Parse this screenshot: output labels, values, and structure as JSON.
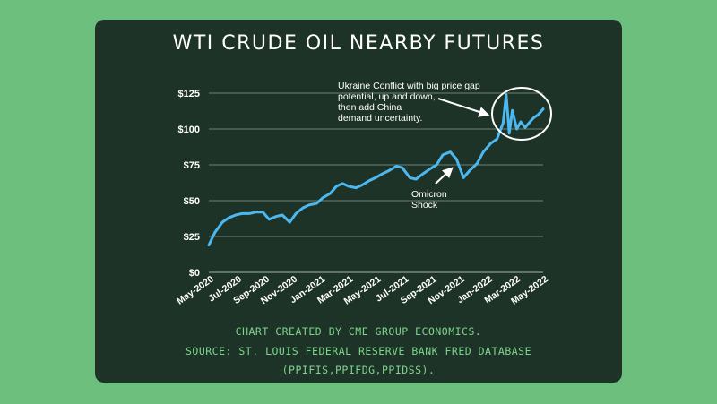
{
  "chart_data": {
    "type": "line",
    "title": "WTI CRUDE OIL NEARBY FUTURES",
    "yticks": [
      "$0",
      "$25",
      "$50",
      "$75",
      "$100",
      "$125"
    ],
    "ylim": [
      0,
      125
    ],
    "xticks": [
      "May-2020",
      "Jul-2020",
      "Sep-2020",
      "Nov-2020",
      "Jan-2021",
      "Mar-2021",
      "May-2021",
      "Jul-2021",
      "Sep-2021",
      "Nov-2021",
      "Jan-2022",
      "Mar-2022",
      "May-2022"
    ],
    "grid": true,
    "line_color": "#4db8f0",
    "series": [
      {
        "x": [
          "2020-05-01",
          "2020-05-15",
          "2020-06-01",
          "2020-06-15",
          "2020-07-01",
          "2020-07-15",
          "2020-08-01",
          "2020-08-15",
          "2020-09-01",
          "2020-09-15",
          "2020-10-01",
          "2020-10-15",
          "2020-11-01",
          "2020-11-15",
          "2020-12-01",
          "2020-12-15",
          "2021-01-01",
          "2021-01-15",
          "2021-02-01",
          "2021-02-15",
          "2021-03-01",
          "2021-03-15",
          "2021-04-01",
          "2021-04-15",
          "2021-05-01",
          "2021-05-15",
          "2021-06-01",
          "2021-06-15",
          "2021-07-01",
          "2021-07-15",
          "2021-08-01",
          "2021-08-15",
          "2021-09-01",
          "2021-09-15",
          "2021-10-01",
          "2021-10-15",
          "2021-11-01",
          "2021-11-15",
          "2021-12-01",
          "2021-12-15",
          "2022-01-01",
          "2022-01-15",
          "2022-02-01",
          "2022-02-15",
          "2022-03-01",
          "2022-03-08",
          "2022-03-15",
          "2022-03-22",
          "2022-04-01",
          "2022-04-10",
          "2022-04-20",
          "2022-05-01",
          "2022-05-10",
          "2022-05-20",
          "2022-05-31"
        ],
        "values": [
          19,
          28,
          35,
          38,
          40,
          41,
          41,
          42,
          42,
          37,
          39,
          40,
          35,
          41,
          45,
          47,
          48,
          52,
          55,
          60,
          62,
          60,
          59,
          61,
          64,
          66,
          69,
          71,
          74,
          73,
          66,
          65,
          69,
          72,
          75,
          82,
          84,
          79,
          66,
          71,
          76,
          84,
          90,
          93,
          104,
          124,
          97,
          113,
          100,
          105,
          101,
          105,
          108,
          110,
          114
        ]
      }
    ],
    "annotations": [
      {
        "lines": [
          "Ukraine Conflict with big price gap",
          "potential, up and down,",
          "then add China",
          "demand uncertainty."
        ]
      },
      {
        "lines": [
          "Omicron",
          "Shock"
        ]
      }
    ]
  },
  "footer": {
    "line1": "CHART CREATED BY CME GROUP ECONOMICS.",
    "line2": "SOURCE: ST. LOUIS FEDERAL RESERVE BANK FRED DATABASE",
    "line3": "(PPIFIS,PPIFDG,PPIDSS)."
  },
  "colors": {
    "background": "#6cbf7c",
    "card": "#1e3328",
    "footer_text": "#7ed48c",
    "grid": "#8a9a90"
  }
}
